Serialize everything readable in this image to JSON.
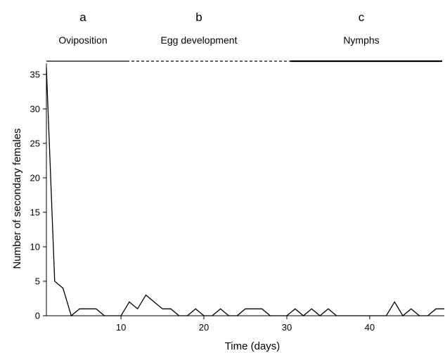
{
  "chart_data": {
    "type": "line",
    "title": "",
    "xlabel": "Time (days)",
    "ylabel": "Number of secondary females",
    "xlim": [
      1,
      49
    ],
    "ylim": [
      0,
      36
    ],
    "x_ticks": [
      "10",
      "20",
      "30",
      "40"
    ],
    "y_ticks": [
      "0",
      "5",
      "10",
      "15",
      "20",
      "25",
      "30",
      "35"
    ],
    "grid": false,
    "phases": [
      {
        "letter": "a",
        "label": "Oviposition",
        "line_style": "solid",
        "start_day": 1,
        "end_day": 10
      },
      {
        "letter": "b",
        "label": "Egg development",
        "line_style": "dashed",
        "start_day": 10,
        "end_day": 30
      },
      {
        "letter": "c",
        "label": "Nymphs",
        "line_style": "solid-thick",
        "start_day": 30,
        "end_day": 49
      }
    ],
    "series": [
      {
        "x": [
          1,
          2,
          3,
          4,
          5,
          6,
          7,
          8,
          9,
          10,
          11,
          12,
          13,
          14,
          15,
          16,
          17,
          18,
          19,
          20,
          21,
          22,
          23,
          24,
          25,
          26,
          27,
          28,
          29,
          30,
          31,
          32,
          33,
          34,
          35,
          36,
          37,
          38,
          39,
          40,
          41,
          42,
          43,
          44,
          45,
          46,
          47,
          48,
          49
        ],
        "values": [
          36,
          5,
          4,
          0,
          1,
          1,
          1,
          0,
          0,
          0,
          2,
          1,
          3,
          2,
          1,
          1,
          0,
          0,
          1,
          0,
          0,
          1,
          0,
          0,
          1,
          1,
          1,
          0,
          0,
          0,
          1,
          0,
          1,
          0,
          1,
          0,
          0,
          0,
          0,
          0,
          0,
          0,
          2,
          0,
          1,
          0,
          0,
          1,
          1
        ]
      }
    ]
  }
}
